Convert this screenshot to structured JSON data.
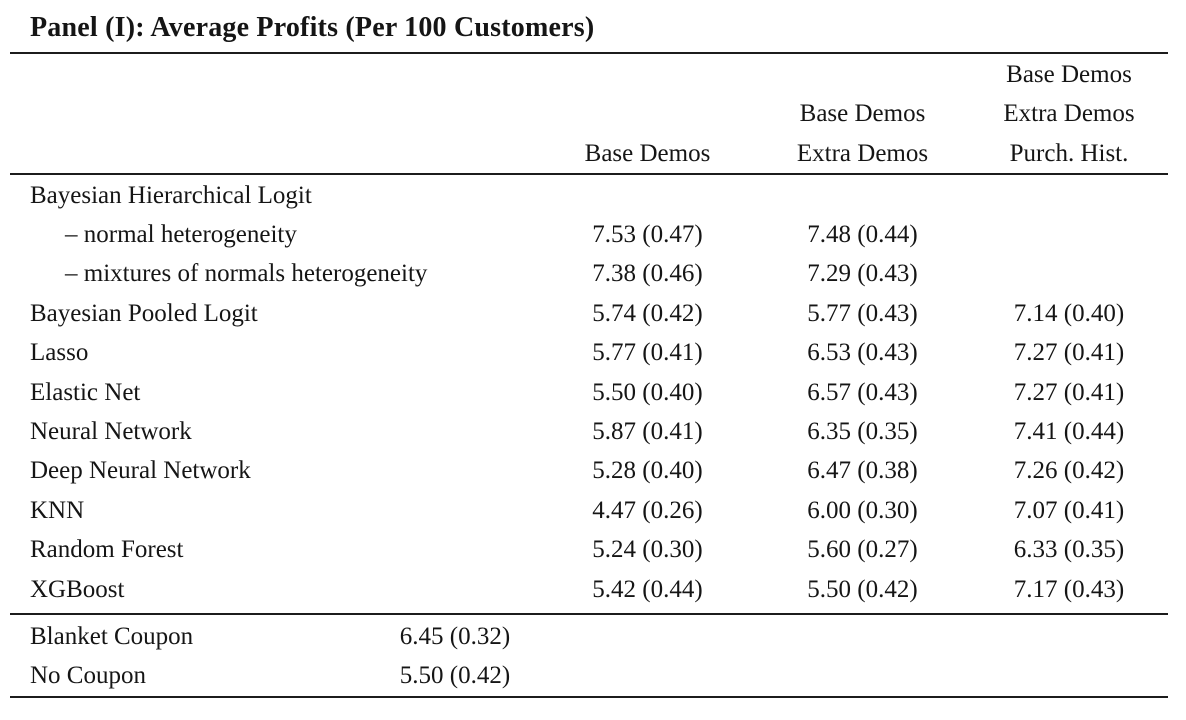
{
  "panel": {
    "title": "Panel (I): Average Profits (Per 100 Customers)"
  },
  "table": {
    "columns": [
      {
        "id": "base_demos",
        "header_lines": [
          "Base Demos"
        ]
      },
      {
        "id": "base_extra_demos",
        "header_lines": [
          "Base Demos",
          "Extra Demos"
        ]
      },
      {
        "id": "base_extra_purch",
        "header_lines": [
          "Base Demos",
          "Extra Demos",
          "Purch. Hist."
        ]
      }
    ],
    "rows": [
      {
        "label": "Bayesian Hierarchical Logit",
        "values": [
          "",
          "",
          ""
        ]
      },
      {
        "label": "– normal heterogeneity",
        "values": [
          "7.53 (0.47)",
          "7.48 (0.44)",
          ""
        ]
      },
      {
        "label": "– mixtures of normals heterogeneity",
        "values": [
          "7.38 (0.46)",
          "7.29 (0.43)",
          ""
        ]
      },
      {
        "label": "Bayesian Pooled Logit",
        "values": [
          "5.74 (0.42)",
          "5.77 (0.43)",
          "7.14 (0.40)"
        ]
      },
      {
        "label": "Lasso",
        "values": [
          "5.77 (0.41)",
          "6.53 (0.43)",
          "7.27 (0.41)"
        ]
      },
      {
        "label": "Elastic Net",
        "values": [
          "5.50 (0.40)",
          "6.57 (0.43)",
          "7.27 (0.41)"
        ]
      },
      {
        "label": "Neural Network",
        "values": [
          "5.87 (0.41)",
          "6.35 (0.35)",
          "7.41 (0.44)"
        ]
      },
      {
        "label": "Deep Neural Network",
        "values": [
          "5.28 (0.40)",
          "6.47 (0.38)",
          "7.26 (0.42)"
        ]
      },
      {
        "label": "KNN",
        "values": [
          "4.47 (0.26)",
          "6.00 (0.30)",
          "7.07 (0.41)"
        ]
      },
      {
        "label": "Random Forest",
        "values": [
          "5.24 (0.30)",
          "5.60 (0.27)",
          "6.33 (0.35)"
        ]
      },
      {
        "label": "XGBoost",
        "values": [
          "5.42 (0.44)",
          "5.50 (0.42)",
          "7.17 (0.43)"
        ]
      }
    ],
    "footer_rows": [
      {
        "label": "Blanket Coupon",
        "value": "6.45 (0.32)"
      },
      {
        "label": "No Coupon",
        "value": "5.50 (0.42)"
      }
    ]
  }
}
